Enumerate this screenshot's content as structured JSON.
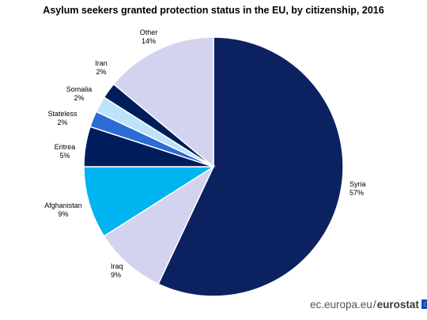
{
  "chart_data": {
    "type": "pie",
    "title": "Asylum seekers granted protection status in the EU, by citizenship, 2016",
    "start_angle_deg": 0,
    "direction": "clockwise",
    "slices": [
      {
        "name": "Syria",
        "value": 57,
        "label": "57%",
        "color": "#0b2160"
      },
      {
        "name": "Iraq",
        "value": 9,
        "label": "9%",
        "color": "#d3d3f0"
      },
      {
        "name": "Afghanistan",
        "value": 9,
        "label": "9%",
        "color": "#00b5ef"
      },
      {
        "name": "Eritrea",
        "value": 5,
        "label": "5%",
        "color": "#001d5b"
      },
      {
        "name": "Stateless",
        "value": 2,
        "label": "2%",
        "color": "#2d6bd6"
      },
      {
        "name": "Somalia",
        "value": 2,
        "label": "2%",
        "color": "#bde3fb"
      },
      {
        "name": "Iran",
        "value": 2,
        "label": "2%",
        "color": "#001d5b"
      },
      {
        "name": "Other",
        "value": 14,
        "label": "14%",
        "color": "#d3d3f0"
      }
    ]
  },
  "branding": {
    "site": "ec.europa.eu",
    "separator": "/",
    "name": "eurostat",
    "flag_icon": "eu-flag-icon"
  }
}
